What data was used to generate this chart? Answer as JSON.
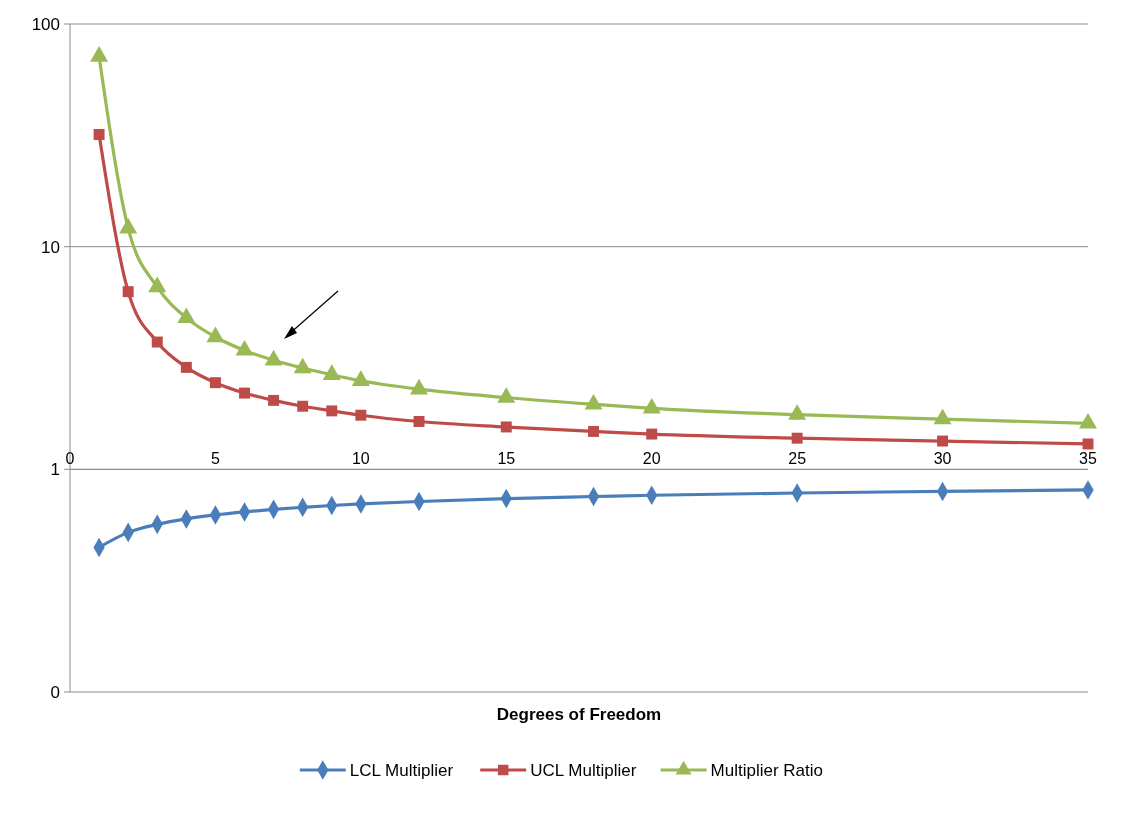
{
  "chart_data": {
    "type": "line",
    "xlabel": "Degrees of Freedom",
    "log": "y",
    "grid": "y",
    "legend": "bottom",
    "xlim": [
      0,
      35
    ],
    "xticks": [
      0,
      5,
      10,
      15,
      20,
      25,
      30,
      35
    ],
    "ylim": [
      0.1,
      100
    ],
    "yticks": [
      {
        "value": 0.1,
        "label": "0"
      },
      1,
      10,
      100
    ],
    "x": [
      1,
      2,
      3,
      4,
      5,
      6,
      7,
      8,
      9,
      10,
      12,
      15,
      18,
      20,
      25,
      30,
      35
    ],
    "series": [
      {
        "name": "LCL Multiplier",
        "color": "#4a7ebb",
        "marker": "diamond",
        "values": [
          0.446,
          0.521,
          0.566,
          0.599,
          0.624,
          0.644,
          0.661,
          0.675,
          0.688,
          0.699,
          0.717,
          0.739,
          0.755,
          0.765,
          0.783,
          0.796,
          0.808
        ]
      },
      {
        "name": "UCL Multiplier",
        "color": "#be4b48",
        "marker": "square",
        "values": [
          31.9,
          6.28,
          3.73,
          2.87,
          2.45,
          2.2,
          2.04,
          1.92,
          1.83,
          1.75,
          1.64,
          1.55,
          1.48,
          1.44,
          1.38,
          1.34,
          1.3
        ]
      },
      {
        "name": "Multiplier Ratio",
        "color": "#98b954",
        "marker": "triangle",
        "values": [
          71.5,
          12.1,
          6.59,
          4.79,
          3.93,
          3.42,
          3.09,
          2.85,
          2.66,
          2.5,
          2.29,
          2.1,
          1.96,
          1.88,
          1.76,
          1.68,
          1.61
        ]
      }
    ]
  }
}
